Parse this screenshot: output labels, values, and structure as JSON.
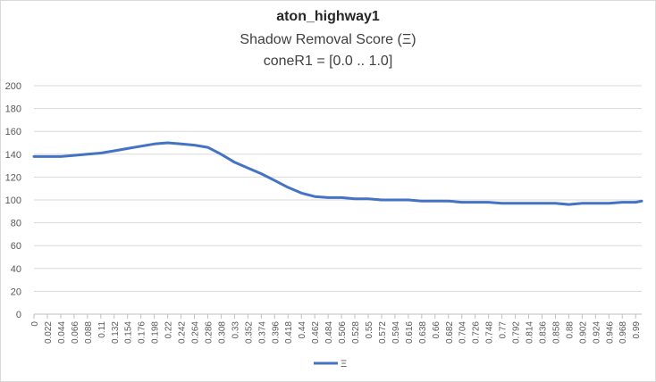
{
  "chart_data": {
    "type": "line",
    "title": "aton_highway1",
    "subtitle": "Shadow Removal Score (Ξ)",
    "subtitle2": "coneR1 = [0.0 .. 1.0]",
    "xlabel": "",
    "ylabel": "",
    "ylim": [
      0,
      200
    ],
    "yticks": [
      0,
      20,
      40,
      60,
      80,
      100,
      120,
      140,
      160,
      180,
      200
    ],
    "x_tick_labels": [
      "0",
      "0.022",
      "0.044",
      "0.066",
      "0.088",
      "0.11",
      "0.132",
      "0.154",
      "0.176",
      "0.198",
      "0.22",
      "0.242",
      "0.264",
      "0.286",
      "0.308",
      "0.33",
      "0.352",
      "0.374",
      "0.396",
      "0.418",
      "0.44",
      "0.462",
      "0.484",
      "0.506",
      "0.528",
      "0.55",
      "0.572",
      "0.594",
      "0.616",
      "0.638",
      "0.66",
      "0.682",
      "0.704",
      "0.726",
      "0.748",
      "0.77",
      "0.792",
      "0.814",
      "0.836",
      "0.858",
      "0.88",
      "0.902",
      "0.924",
      "0.946",
      "0.968",
      "0.99"
    ],
    "xlim": [
      0,
      1.0
    ],
    "grid": true,
    "legend_position": "bottom",
    "series": [
      {
        "name": "Ξ",
        "color": "#4472c4",
        "x": [
          0,
          0.022,
          0.044,
          0.066,
          0.088,
          0.11,
          0.132,
          0.154,
          0.176,
          0.198,
          0.22,
          0.242,
          0.264,
          0.286,
          0.308,
          0.33,
          0.352,
          0.374,
          0.396,
          0.418,
          0.44,
          0.462,
          0.484,
          0.506,
          0.528,
          0.55,
          0.572,
          0.594,
          0.616,
          0.638,
          0.66,
          0.682,
          0.704,
          0.726,
          0.748,
          0.77,
          0.792,
          0.814,
          0.836,
          0.858,
          0.88,
          0.902,
          0.924,
          0.946,
          0.968,
          0.99,
          1.0
        ],
        "values": [
          138,
          138,
          138,
          139,
          140,
          141,
          143,
          145,
          147,
          149,
          150,
          149,
          148,
          146,
          140,
          133,
          128,
          123,
          117,
          111,
          106,
          103,
          102,
          102,
          101,
          101,
          100,
          100,
          100,
          99,
          99,
          99,
          98,
          98,
          98,
          97,
          97,
          97,
          97,
          97,
          96,
          97,
          97,
          97,
          98,
          98,
          99
        ]
      }
    ]
  }
}
